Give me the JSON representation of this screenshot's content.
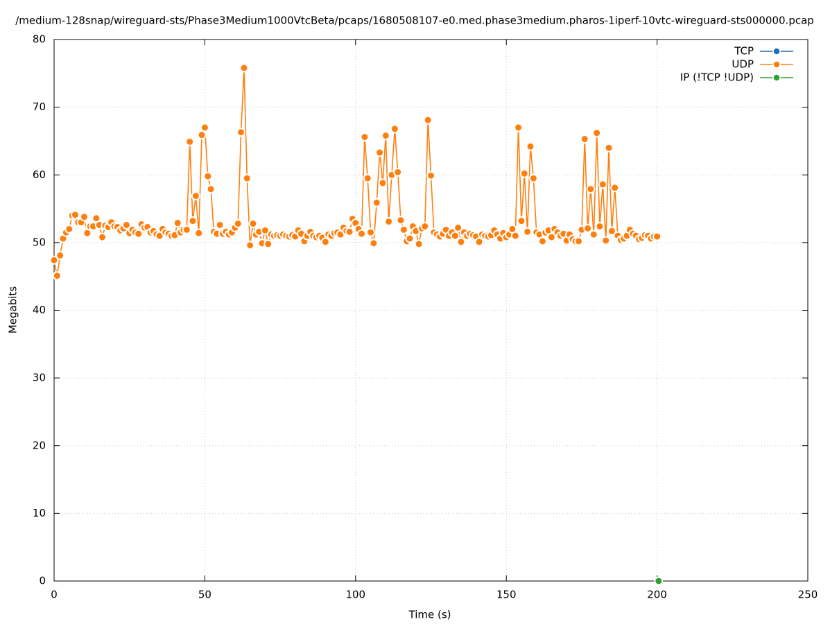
{
  "chart_data": {
    "type": "line",
    "title": "/medium-128snap/wireguard-sts/Phase3Medium1000VtcBeta/pcaps/1680508107-e0.med.phase3medium.pharos-1iperf-10vtc-wireguard-sts000000.pcap",
    "xlabel": "Time (s)",
    "ylabel": "Megabits",
    "xlim": [
      0,
      250
    ],
    "xticks": [
      0,
      50,
      100,
      150,
      200,
      250
    ],
    "ylim": [
      0,
      80
    ],
    "yticks": [
      0,
      10,
      20,
      30,
      40,
      50,
      60,
      70,
      80
    ],
    "grid": true,
    "legend": "top-right",
    "series": [
      {
        "name": "TCP",
        "color": "#1f6fb4",
        "x": [],
        "values": []
      },
      {
        "name": "UDP",
        "color": "#ff7f0e",
        "x": [
          0,
          1,
          2,
          3,
          4,
          5,
          6,
          7,
          8,
          9,
          10,
          11,
          12,
          13,
          14,
          15,
          16,
          17,
          18,
          19,
          20,
          21,
          22,
          23,
          24,
          25,
          26,
          27,
          28,
          29,
          30,
          31,
          32,
          33,
          34,
          35,
          36,
          37,
          38,
          39,
          40,
          41,
          42,
          43,
          44,
          45,
          46,
          47,
          48,
          49,
          50,
          51,
          52,
          53,
          54,
          55,
          56,
          57,
          58,
          59,
          60,
          61,
          62,
          63,
          64,
          65,
          66,
          67,
          68,
          69,
          70,
          71,
          72,
          73,
          74,
          75,
          76,
          77,
          78,
          79,
          80,
          81,
          82,
          83,
          84,
          85,
          86,
          87,
          88,
          89,
          90,
          91,
          92,
          93,
          94,
          95,
          96,
          97,
          98,
          99,
          100,
          101,
          102,
          103,
          104,
          105,
          106,
          107,
          108,
          109,
          110,
          111,
          112,
          113,
          114,
          115,
          116,
          117,
          118,
          119,
          120,
          121,
          122,
          123,
          124,
          125,
          126,
          127,
          128,
          129,
          130,
          131,
          132,
          133,
          134,
          135,
          136,
          137,
          138,
          139,
          140,
          141,
          142,
          143,
          144,
          145,
          146,
          147,
          148,
          149,
          150,
          151,
          152,
          153,
          154,
          155,
          156,
          157,
          158,
          159,
          160,
          161,
          162,
          163,
          164,
          165,
          166,
          167,
          168,
          169,
          170,
          171,
          172,
          173,
          174,
          175,
          176,
          177,
          178,
          179,
          180,
          181,
          182,
          183,
          184,
          185,
          186,
          187,
          188,
          189,
          190,
          191,
          192,
          193,
          194,
          195,
          196,
          197,
          198,
          199,
          200
        ],
        "values": [
          47.4,
          45.1,
          48.1,
          50.6,
          51.5,
          52.0,
          54.0,
          54.1,
          53.0,
          53.0,
          53.8,
          51.4,
          52.4,
          52.4,
          53.6,
          52.6,
          50.8,
          52.5,
          52.3,
          53.0,
          52.4,
          52.3,
          51.8,
          52.1,
          52.6,
          51.4,
          51.9,
          51.5,
          51.3,
          52.7,
          52.2,
          52.3,
          51.5,
          51.7,
          51.2,
          51.0,
          52.0,
          51.5,
          51.3,
          51.0,
          51.1,
          52.9,
          51.5,
          51.9,
          51.9,
          64.9,
          53.2,
          56.9,
          51.4,
          65.9,
          67.0,
          59.8,
          57.9,
          51.6,
          51.3,
          52.6,
          51.3,
          51.6,
          51.2,
          51.5,
          52.2,
          52.8,
          66.3,
          75.8,
          59.5,
          49.6,
          52.8,
          51.2,
          51.6,
          49.9,
          51.8,
          49.8,
          51.2,
          51.0,
          51.1,
          51.0,
          51.2,
          51.0,
          50.9,
          51.1,
          50.9,
          51.8,
          51.3,
          50.2,
          51.0,
          51.6,
          51.0,
          50.8,
          51.0,
          50.7,
          50.1,
          51.2,
          51.0,
          51.4,
          51.5,
          51.2,
          52.2,
          51.7,
          51.6,
          53.5,
          52.9,
          52.0,
          51.3,
          65.6,
          59.5,
          51.5,
          49.9,
          55.9,
          63.3,
          58.8,
          65.8,
          53.1,
          60.0,
          66.8,
          60.4,
          53.3,
          51.9,
          50.2,
          50.6,
          52.4,
          51.7,
          49.8,
          52.1,
          52.4,
          68.1,
          59.9,
          51.5,
          51.2,
          50.9,
          51.3,
          51.9,
          51.0,
          51.5,
          51.0,
          52.2,
          50.1,
          51.5,
          51.0,
          51.3,
          51.1,
          50.9,
          50.1,
          51.2,
          51.0,
          50.9,
          51.1,
          51.8,
          51.2,
          50.6,
          51.4,
          50.8,
          51.2,
          52.0,
          51.0,
          67.0,
          53.2,
          60.2,
          51.6,
          64.2,
          59.5,
          51.5,
          51.2,
          50.2,
          51.5,
          51.8,
          50.8,
          52.0,
          51.5,
          51.0,
          51.3,
          50.3,
          51.2,
          50.5,
          50.2,
          50.2,
          51.9,
          65.3,
          52.1,
          57.9,
          51.2,
          66.2,
          52.4,
          58.6,
          50.3,
          64.0,
          51.7,
          58.1,
          51.0,
          50.4,
          50.6,
          51.0,
          51.9,
          51.3,
          51.0,
          50.5,
          50.7,
          51.1,
          51.0,
          50.6,
          50.9,
          50.9
        ]
      },
      {
        "name": "IP (!TCP  !UDP)",
        "color": "#2ca02c",
        "x": [
          200.5
        ],
        "values": [
          0
        ]
      }
    ]
  }
}
